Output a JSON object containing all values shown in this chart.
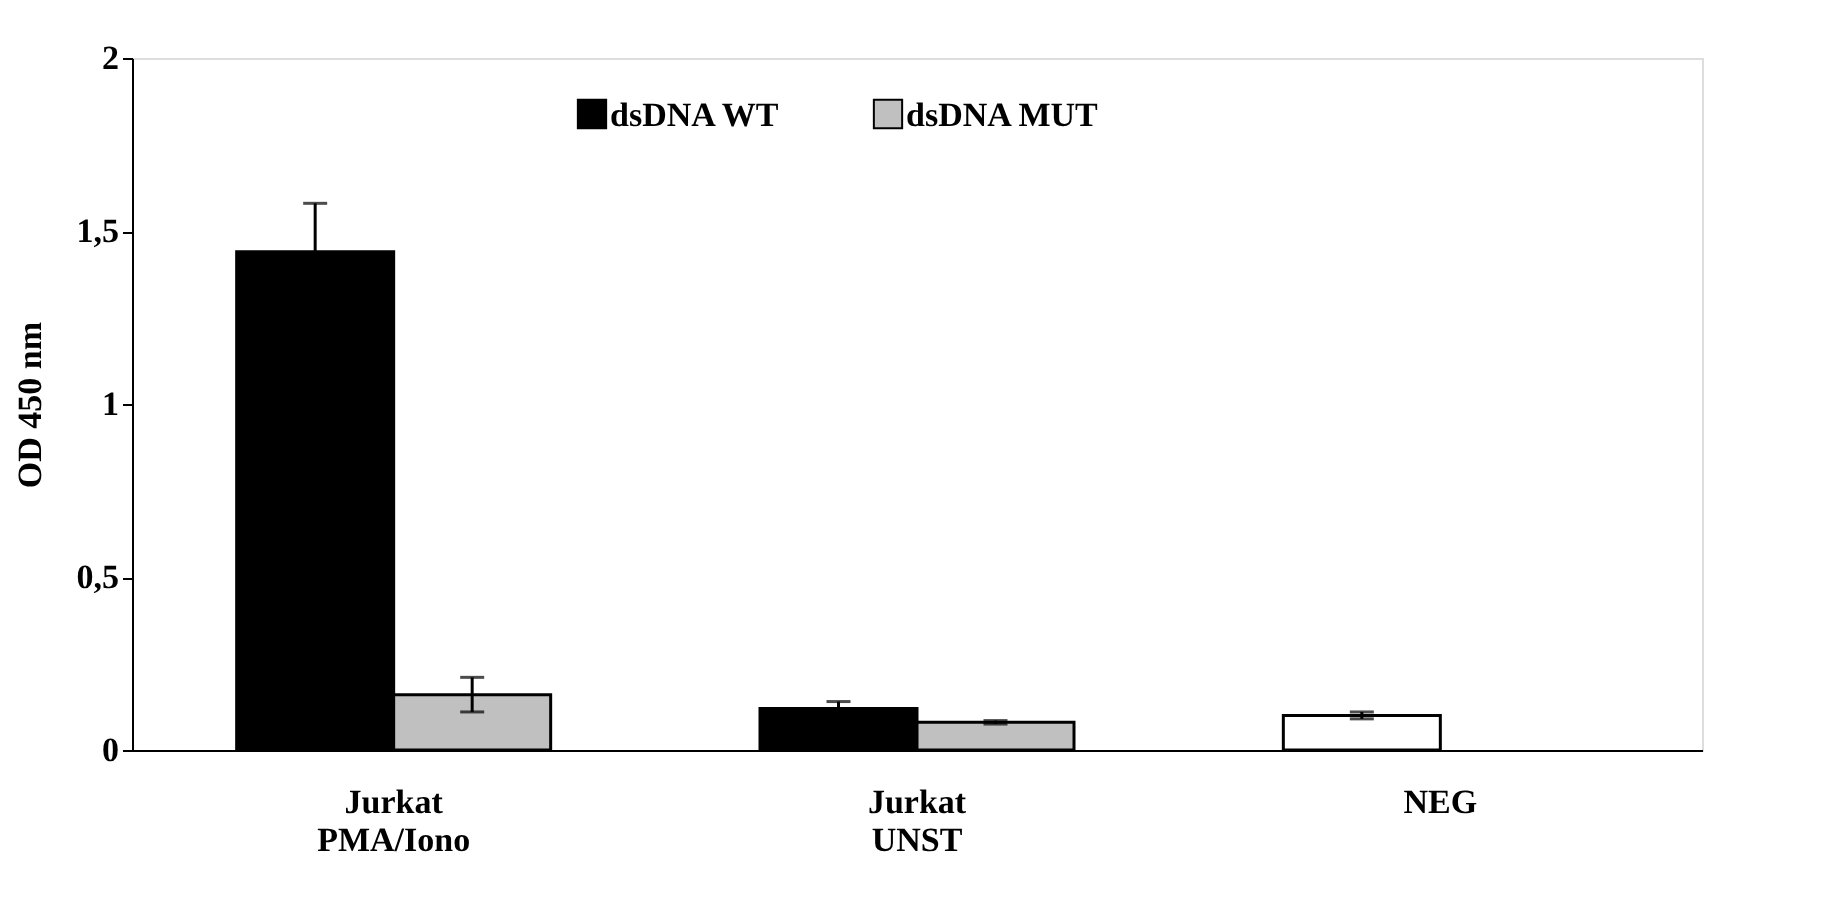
{
  "chart_data": {
    "type": "bar",
    "ylabel": "OD 450 nm",
    "categories": [
      "Jurkat PMA/Iono",
      "Jurkat UNST",
      "NEG"
    ],
    "series": [
      {
        "name": "dsDNA WT",
        "color": "#000000",
        "colors": [
          "#000000",
          "#000000",
          "#ffffff"
        ],
        "values": [
          1.44,
          0.12,
          0.1
        ],
        "errors": [
          0.14,
          0.02,
          0.01
        ]
      },
      {
        "name": "dsDNA MUT",
        "color": "#c0c0c0",
        "values": [
          0.16,
          0.08,
          null
        ],
        "errors": [
          0.05,
          0.005,
          null
        ]
      }
    ],
    "ylim": [
      0,
      2
    ],
    "yticks": [
      0,
      {
        "value": 0.5,
        "label": "0,5"
      },
      1,
      {
        "value": 1.5,
        "label": "1,5"
      },
      2
    ],
    "grid": false,
    "legend": "top"
  }
}
